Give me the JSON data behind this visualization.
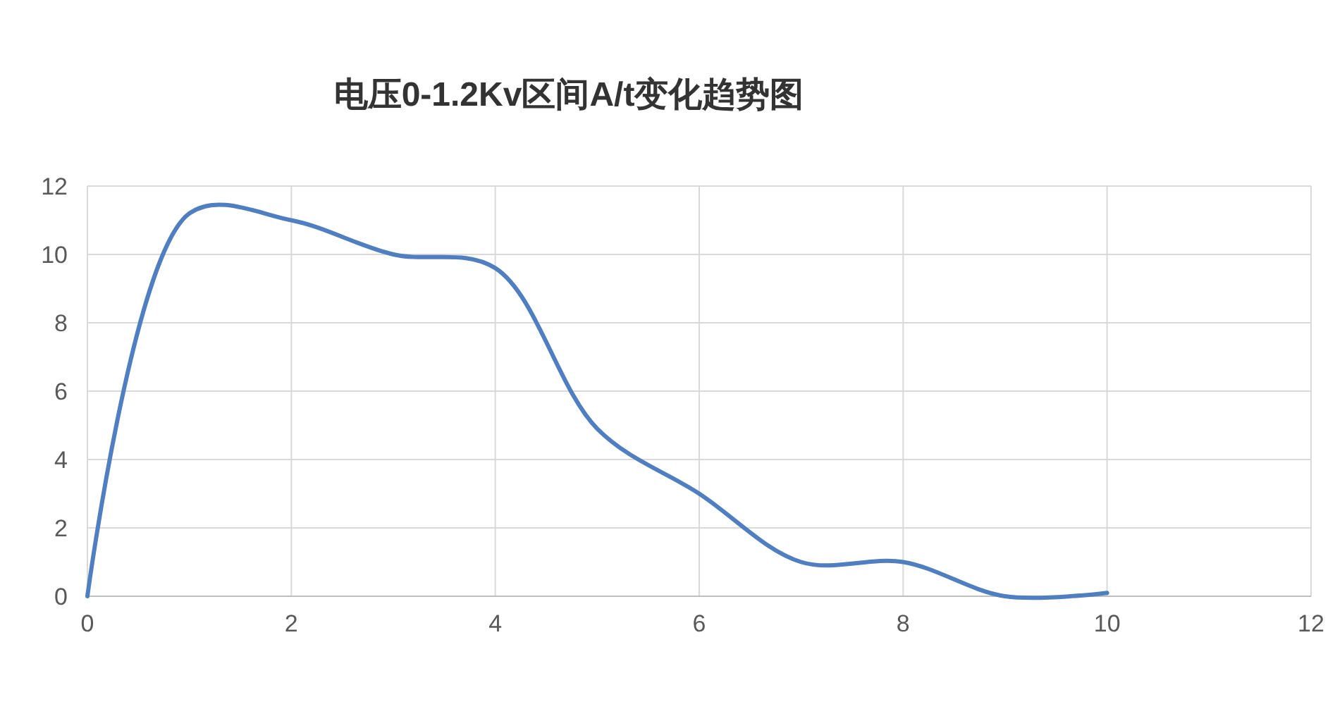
{
  "chart_data": {
    "type": "line",
    "title": "电压0-1.2Kv区间A/t变化趋势图",
    "x": [
      0,
      1,
      2,
      3,
      4,
      5,
      6,
      7,
      8,
      9,
      10
    ],
    "series": [
      {
        "color": "#4f7fc0",
        "values": [
          0,
          11.2,
          11.0,
          10.0,
          9.6,
          4.9,
          3.0,
          1.0,
          1.0,
          0,
          0.1
        ]
      }
    ],
    "xlim": [
      0,
      12
    ],
    "xticks": [
      0,
      2,
      4,
      6,
      8,
      10,
      12
    ],
    "ylim": [
      0,
      12
    ],
    "yticks": [
      0,
      2,
      4,
      6,
      8,
      10,
      12
    ],
    "grid": true,
    "marker": "none",
    "line_style": "solid"
  }
}
